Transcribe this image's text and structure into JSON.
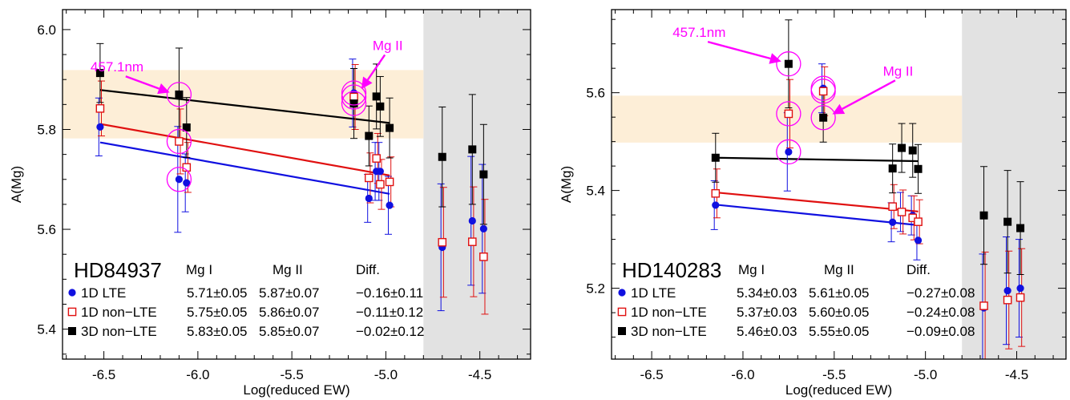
{
  "figure": {
    "colors": {
      "lte": "#1010e0",
      "nlte": "#e01010",
      "nlte3d": "#000000",
      "annotation": "#ff00ff",
      "band": "#fdeed7",
      "shade": "#e2e2e2"
    }
  },
  "chart_data": [
    {
      "type": "scatter",
      "panel_id": "left",
      "title": "",
      "xlabel": "Log(reduced EW)",
      "ylabel": "A(Mg)",
      "xlim": [
        -6.72,
        -4.23
      ],
      "ylim": [
        5.34,
        6.04
      ],
      "xticks": [
        -6.5,
        -6.0,
        -5.5,
        -5.0,
        -4.5
      ],
      "xtick_labels": [
        "-6.5",
        "-6.0",
        "-5.5",
        "-5.0",
        "-4.5"
      ],
      "yticks": [
        5.4,
        5.6,
        5.8,
        6.0
      ],
      "ytick_labels": [
        "5.4",
        "5.6",
        "5.8",
        "6.0"
      ],
      "band": {
        "y_low": 5.782,
        "y_high": 5.919
      },
      "shade_x_from": -4.8,
      "table": {
        "star": "HD84937",
        "headers": [
          "Mg I",
          "Mg II",
          "Diff."
        ],
        "rows": [
          {
            "label": "1D LTE",
            "marker": "circle",
            "values": [
              "5.71±0.05",
              "5.87±0.07",
              "−0.16±0.11"
            ]
          },
          {
            "label": "1D non−LTE",
            "marker": "open-square",
            "values": [
              "5.75±0.05",
              "5.86±0.07",
              "−0.11±0.12"
            ]
          },
          {
            "label": "3D non−LTE",
            "marker": "filled-square",
            "values": [
              "5.83±0.05",
              "5.85±0.07",
              "−0.02±0.12"
            ]
          }
        ]
      },
      "annotations": [
        {
          "text": "457.1nm",
          "at": [
            -6.43,
            5.916
          ],
          "arrow_to": [
            -6.15,
            5.874
          ]
        },
        {
          "text": "Mg II",
          "at": [
            -4.99,
            5.959
          ],
          "arrow_to": [
            -5.13,
            5.881
          ]
        }
      ],
      "series": [
        {
          "name": "1D LTE",
          "x": [
            -6.52,
            -6.1,
            -6.06,
            -5.17,
            -5.09,
            -5.05,
            -5.03,
            -4.98,
            -4.7,
            -4.54,
            -4.48
          ],
          "y": [
            5.805,
            5.7,
            5.693,
            5.873,
            5.662,
            5.716,
            5.716,
            5.648,
            5.564,
            5.617,
            5.601
          ],
          "err": [
            0.058,
            0.106,
            0.058,
            0.068,
            0.048,
            0.058,
            0.058,
            0.058,
            0.127,
            0.129,
            0.129
          ],
          "fit": {
            "x": [
              -6.52,
              -4.98
            ],
            "y": [
              5.774,
              5.671
            ]
          }
        },
        {
          "name": "1D non-LTE",
          "x": [
            -6.52,
            -6.1,
            -6.06,
            -5.17,
            -5.09,
            -5.05,
            -5.03,
            -4.98,
            -4.7,
            -4.54,
            -4.48
          ],
          "y": [
            5.842,
            5.776,
            5.724,
            5.865,
            5.703,
            5.742,
            5.69,
            5.695,
            5.574,
            5.575,
            5.545
          ],
          "err": [
            0.055,
            0.065,
            0.05,
            0.065,
            0.05,
            0.05,
            0.05,
            0.05,
            0.11,
            0.11,
            0.115
          ],
          "fit": {
            "x": [
              -6.52,
              -4.98
            ],
            "y": [
              5.811,
              5.708
            ]
          }
        },
        {
          "name": "3D non-LTE",
          "x": [
            -6.52,
            -6.1,
            -6.06,
            -5.17,
            -5.09,
            -5.05,
            -5.03,
            -4.98,
            -4.7,
            -4.54,
            -4.48
          ],
          "y": [
            5.913,
            5.87,
            5.804,
            5.852,
            5.787,
            5.866,
            5.846,
            5.803,
            5.745,
            5.76,
            5.71
          ],
          "err": [
            0.059,
            0.093,
            0.06,
            0.07,
            0.06,
            0.065,
            0.06,
            0.06,
            0.1,
            0.11,
            0.1
          ],
          "fit": {
            "x": [
              -6.52,
              -4.98
            ],
            "y": [
              5.879,
              5.813
            ]
          }
        }
      ],
      "circles": [
        [
          -6.1,
          5.87
        ],
        [
          -6.1,
          5.776
        ],
        [
          -6.1,
          5.7
        ],
        [
          -5.17,
          5.873
        ],
        [
          -5.17,
          5.865
        ],
        [
          -5.17,
          5.852
        ]
      ]
    },
    {
      "type": "scatter",
      "panel_id": "right",
      "title": "",
      "xlabel": "Log(reduced EW)",
      "ylabel": "A(Mg)",
      "xlim": [
        -6.72,
        -4.23
      ],
      "ylim": [
        5.055,
        5.77
      ],
      "xticks": [
        -6.5,
        -6.0,
        -5.5,
        -5.0,
        -4.5
      ],
      "xtick_labels": [
        "-6.5",
        "-6.0",
        "-5.5",
        "-5.0",
        "-4.5"
      ],
      "yticks": [
        5.2,
        5.4,
        5.6
      ],
      "ytick_labels": [
        "5.2",
        "5.4",
        "5.6"
      ],
      "band": {
        "y_low": 5.498,
        "y_high": 5.594
      },
      "shade_x_from": -4.8,
      "table": {
        "star": "HD140283",
        "headers": [
          "Mg I",
          "Mg II",
          "Diff."
        ],
        "rows": [
          {
            "label": "1D LTE",
            "marker": "circle",
            "values": [
              "5.34±0.03",
              "5.61±0.05",
              "−0.27±0.08"
            ]
          },
          {
            "label": "1D non−LTE",
            "marker": "open-square",
            "values": [
              "5.37±0.03",
              "5.60±0.05",
              "−0.24±0.08"
            ]
          },
          {
            "label": "3D non−LTE",
            "marker": "filled-square",
            "values": [
              "5.46±0.03",
              "5.55±0.05",
              "−0.09±0.08"
            ]
          }
        ]
      },
      "annotations": [
        {
          "text": "457.1nm",
          "at": [
            -6.24,
            5.714
          ],
          "arrow_to": [
            -5.79,
            5.664
          ]
        },
        {
          "text": "Mg II",
          "at": [
            -5.15,
            5.635
          ],
          "arrow_to": [
            -5.51,
            5.556
          ]
        }
      ],
      "series": [
        {
          "name": "1D LTE",
          "x": [
            -6.15,
            -5.75,
            -5.56,
            -5.18,
            -5.13,
            -5.07,
            -5.04,
            -4.68,
            -4.55,
            -4.48
          ],
          "y": [
            5.37,
            5.479,
            5.609,
            5.335,
            5.356,
            5.349,
            5.298,
            5.16,
            5.195,
            5.2
          ],
          "err": [
            0.05,
            0.08,
            0.05,
            0.04,
            0.04,
            0.04,
            0.04,
            0.11,
            0.11,
            0.1
          ],
          "fit": {
            "x": [
              -6.15,
              -5.04
            ],
            "y": [
              5.371,
              5.329
            ]
          }
        },
        {
          "name": "1D non-LTE",
          "x": [
            -6.15,
            -5.75,
            -5.56,
            -5.18,
            -5.13,
            -5.07,
            -5.04,
            -4.68,
            -4.55,
            -4.48
          ],
          "y": [
            5.394,
            5.557,
            5.603,
            5.367,
            5.356,
            5.344,
            5.336,
            5.164,
            5.176,
            5.181
          ],
          "err": [
            0.05,
            0.07,
            0.05,
            0.045,
            0.045,
            0.045,
            0.045,
            0.11,
            0.1,
            0.1
          ],
          "fit": {
            "x": [
              -6.15,
              -5.04
            ],
            "y": [
              5.396,
              5.357
            ]
          }
        },
        {
          "name": "3D non-LTE",
          "x": [
            -6.15,
            -5.75,
            -5.56,
            -5.18,
            -5.13,
            -5.07,
            -5.04,
            -4.68,
            -4.55,
            -4.48
          ],
          "y": [
            5.467,
            5.659,
            5.549,
            5.445,
            5.487,
            5.482,
            5.444,
            5.349,
            5.336,
            5.323
          ],
          "err": [
            0.05,
            0.09,
            0.05,
            0.05,
            0.05,
            0.055,
            0.05,
            0.1,
            0.105,
            0.095
          ],
          "fit": {
            "x": [
              -6.15,
              -5.04
            ],
            "y": [
              5.467,
              5.46
            ]
          }
        }
      ],
      "circles": [
        [
          -5.75,
          5.659
        ],
        [
          -5.75,
          5.557
        ],
        [
          -5.75,
          5.479
        ],
        [
          -5.56,
          5.609
        ],
        [
          -5.56,
          5.603
        ],
        [
          -5.56,
          5.549
        ]
      ]
    }
  ]
}
